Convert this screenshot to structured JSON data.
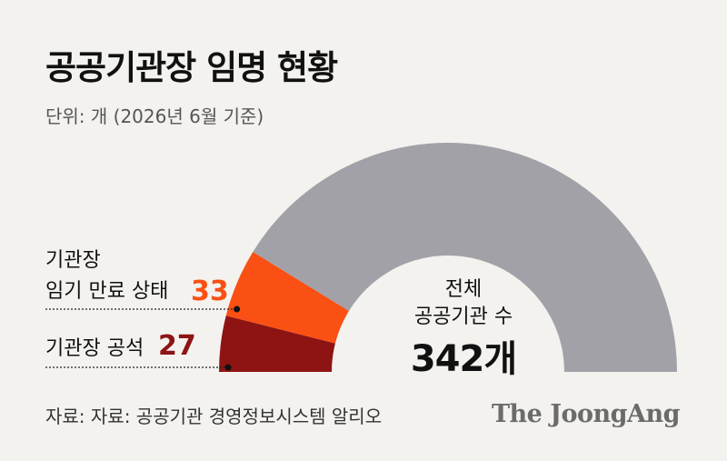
{
  "title": "공공기관장 임명 현황",
  "unit": "단위: 개 (2026년 6월 기준)",
  "chart_data": {
    "type": "pie",
    "total": 342,
    "center_label_line1": "전체",
    "center_label_line2": "공공기관 수",
    "center_value": "342개",
    "slices": [
      {
        "label_line1": "기관장 공석",
        "label_line2": "",
        "value": 27,
        "value_text": "27",
        "color": "#8e1414"
      },
      {
        "label_line1": "기관장",
        "label_line2": "임기 만료 상태",
        "value": 33,
        "value_text": "33",
        "color": "#fa5014"
      },
      {
        "label_line1": "",
        "label_line2": "",
        "value": 282,
        "value_text": "",
        "color": "#a2a1a8"
      }
    ]
  },
  "source": "자료: 자료: 공공기관 경영정보시스템 알리오",
  "brand": "The JoongAng"
}
